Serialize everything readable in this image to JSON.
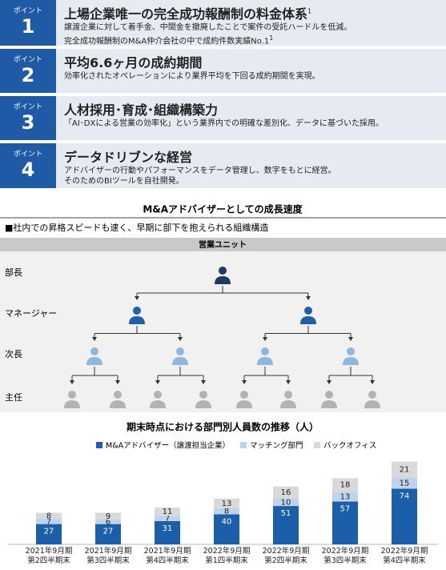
{
  "points": [
    {
      "label": "ポイント",
      "number": "1",
      "title": "上場企業唯一の完全成功報酬制の料金体系",
      "title_note": "1",
      "lines": [
        "譲渡企業に対して着手金、中間金を撤廃したことで案件の受託ハードルを低減。",
        "完全成功報酬制のM&A仲介会社の中で成約件数実績No.1"
      ],
      "line_note": "1"
    },
    {
      "label": "ポイント",
      "number": "2",
      "title": "平均6.6ヶ月の成約期間",
      "lines": [
        "効率化されたオペレーションにより業界平均を下回る成約期間を実現。"
      ]
    },
    {
      "label": "ポイント",
      "number": "3",
      "title": "人材採用･育成･組織構築力",
      "lines": [
        "「AI･DXによる営業の効率化」という業界内での明確な差別化、データに基づいた採用。"
      ]
    },
    {
      "label": "ポイント",
      "number": "4",
      "title": "データドリブンな経営",
      "lines": [
        "アドバイザーの行動やパフォーマンスをデータ管理し、数字をもとに経営。",
        "そのためのBIツールを自社開発。"
      ]
    }
  ],
  "growth": {
    "title": "M&Aアドバイザーとしての成長速度",
    "subtitle": "■社内での昇格スピードも速く、早期に部下を抱えられる組織構造",
    "unit": "営業ユニット",
    "levels": [
      "部長",
      "マネージャー",
      "次長",
      "主任"
    ]
  },
  "chart_data": {
    "type": "bar",
    "stacked": true,
    "title": "期末時点における部門別人員数の推移（人）",
    "categories": [
      "2021年9月期\n第2四半期末",
      "2021年9月期\n第3四半期末",
      "2021年9月期\n第4四半期末",
      "2022年9月期\n第1四半期末",
      "2022年9月期\n第2四半期末",
      "2022年9月期\n第3四半期末",
      "2022年9月期\n第4四半期末"
    ],
    "series": [
      {
        "name": "M&Aアドバイザー（譲渡担当企業）",
        "color": "#1b5faa",
        "values": [
          27,
          27,
          31,
          40,
          51,
          57,
          74
        ]
      },
      {
        "name": "マッチング部門",
        "color": "#bdd4ec",
        "values": [
          7,
          6,
          7,
          8,
          10,
          13,
          15
        ]
      },
      {
        "name": "バックオフィス",
        "color": "#d9d9d9",
        "values": [
          8,
          9,
          11,
          13,
          16,
          18,
          21
        ]
      }
    ]
  }
}
